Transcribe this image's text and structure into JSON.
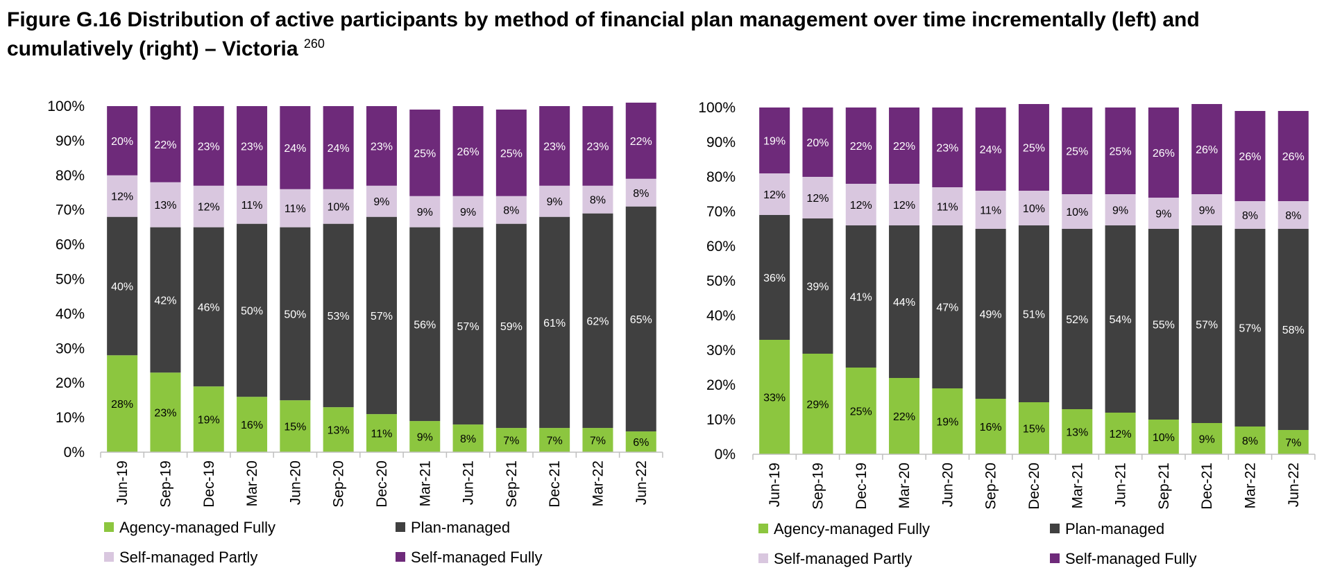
{
  "figure": {
    "title_main": "Figure G.16 Distribution of active participants by method of financial plan management over time incrementally (left) and cumulatively (right) – Victoria",
    "title_ref": "260"
  },
  "colors": {
    "agency_managed_fully": "#8cc63f",
    "plan_managed": "#404040",
    "self_managed_partly": "#d9c7df",
    "self_managed_fully": "#6e2a7a",
    "axis": "#bfbfbf"
  },
  "chart_data": [
    {
      "type": "bar",
      "stacked": true,
      "title": "",
      "xlabel": "",
      "ylabel": "",
      "ylim": [
        0,
        100
      ],
      "yticks": [
        "0%",
        "10%",
        "20%",
        "30%",
        "40%",
        "50%",
        "60%",
        "70%",
        "80%",
        "90%",
        "100%"
      ],
      "categories": [
        "Jun-19",
        "Sep-19",
        "Dec-19",
        "Mar-20",
        "Jun-20",
        "Sep-20",
        "Dec-20",
        "Mar-21",
        "Jun-21",
        "Sep-21",
        "Dec-21",
        "Mar-22",
        "Jun-22"
      ],
      "legend_position": "bottom",
      "series": [
        {
          "name": "Agency-managed Fully",
          "color": "#8cc63f",
          "label_color": "#000000",
          "values": [
            28,
            23,
            19,
            16,
            15,
            13,
            11,
            9,
            8,
            7,
            7,
            7,
            6
          ],
          "labels": [
            "28%",
            "23%",
            "19%",
            "16%",
            "15%",
            "13%",
            "11%",
            "9%",
            "8%",
            "7%",
            "7%",
            "7%",
            "6%"
          ]
        },
        {
          "name": "Plan-managed",
          "color": "#404040",
          "label_color": "#ffffff",
          "values": [
            40,
            42,
            46,
            50,
            50,
            53,
            57,
            56,
            57,
            59,
            61,
            62,
            65
          ],
          "labels": [
            "40%",
            "42%",
            "46%",
            "50%",
            "50%",
            "53%",
            "57%",
            "56%",
            "57%",
            "59%",
            "61%",
            "62%",
            "65%"
          ]
        },
        {
          "name": "Self-managed Partly",
          "color": "#d9c7df",
          "label_color": "#000000",
          "values": [
            12,
            13,
            12,
            11,
            11,
            10,
            9,
            9,
            9,
            8,
            9,
            8,
            8
          ],
          "labels": [
            "12%",
            "13%",
            "12%",
            "11%",
            "11%",
            "10%",
            "9%",
            "9%",
            "9%",
            "8%",
            "9%",
            "8%",
            "8%"
          ]
        },
        {
          "name": "Self-managed Fully",
          "color": "#6e2a7a",
          "label_color": "#ffffff",
          "values": [
            20,
            22,
            23,
            23,
            24,
            24,
            23,
            25,
            26,
            25,
            23,
            23,
            22
          ],
          "labels": [
            "20%",
            "22%",
            "23%",
            "23%",
            "24%",
            "24%",
            "23%",
            "25%",
            "26%",
            "25%",
            "23%",
            "23%",
            "22%"
          ]
        }
      ]
    },
    {
      "type": "bar",
      "stacked": true,
      "title": "",
      "xlabel": "",
      "ylabel": "",
      "ylim": [
        0,
        100
      ],
      "yticks": [
        "0%",
        "10%",
        "20%",
        "30%",
        "40%",
        "50%",
        "60%",
        "70%",
        "80%",
        "90%",
        "100%"
      ],
      "categories": [
        "Jun-19",
        "Sep-19",
        "Dec-19",
        "Mar-20",
        "Jun-20",
        "Sep-20",
        "Dec-20",
        "Mar-21",
        "Jun-21",
        "Sep-21",
        "Dec-21",
        "Mar-22",
        "Jun-22"
      ],
      "legend_position": "bottom",
      "series": [
        {
          "name": "Agency-managed Fully",
          "color": "#8cc63f",
          "label_color": "#000000",
          "values": [
            33,
            29,
            25,
            22,
            19,
            16,
            15,
            13,
            12,
            10,
            9,
            8,
            7
          ],
          "labels": [
            "33%",
            "29%",
            "25%",
            "22%",
            "19%",
            "16%",
            "15%",
            "13%",
            "12%",
            "10%",
            "9%",
            "8%",
            "7%"
          ]
        },
        {
          "name": "Plan-managed",
          "color": "#404040",
          "label_color": "#ffffff",
          "values": [
            36,
            39,
            41,
            44,
            47,
            49,
            51,
            52,
            54,
            55,
            57,
            57,
            58
          ],
          "labels": [
            "36%",
            "39%",
            "41%",
            "44%",
            "47%",
            "49%",
            "51%",
            "52%",
            "54%",
            "55%",
            "57%",
            "57%",
            "58%"
          ]
        },
        {
          "name": "Self-managed Partly",
          "color": "#d9c7df",
          "label_color": "#000000",
          "values": [
            12,
            12,
            12,
            12,
            11,
            11,
            10,
            10,
            9,
            9,
            9,
            8,
            8
          ],
          "labels": [
            "12%",
            "12%",
            "12%",
            "12%",
            "11%",
            "11%",
            "10%",
            "10%",
            "9%",
            "9%",
            "9%",
            "8%",
            "8%"
          ]
        },
        {
          "name": "Self-managed Fully",
          "color": "#6e2a7a",
          "label_color": "#ffffff",
          "values": [
            19,
            20,
            22,
            22,
            23,
            24,
            25,
            25,
            25,
            26,
            26,
            26,
            26
          ],
          "labels": [
            "19%",
            "20%",
            "22%",
            "22%",
            "23%",
            "24%",
            "25%",
            "25%",
            "25%",
            "26%",
            "26%",
            "26%",
            "26%"
          ]
        }
      ]
    }
  ]
}
